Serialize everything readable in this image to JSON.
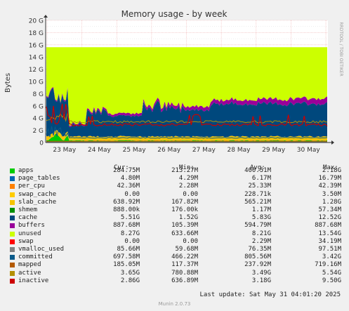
{
  "chart_data": {
    "type": "area",
    "title": "Memory usage - by week",
    "ylabel": "Bytes",
    "watermark": "RRDTOOL / TOBI OETIKER",
    "ylim": [
      0,
      20
    ],
    "y_unit": "G",
    "yticks": [
      "0",
      "2 G",
      "4 G",
      "6 G",
      "8 G",
      "10 G",
      "12 G",
      "14 G",
      "16 G",
      "18 G",
      "20 G"
    ],
    "x_tick_labels": [
      "23 May",
      "24 May",
      "25 May",
      "26 May",
      "27 May",
      "28 May",
      "29 May",
      "30 May"
    ],
    "grid": true,
    "total_ram_G": 15.6,
    "legend_columns": [
      "Cur:",
      "Min:",
      "Avg:",
      "Max:"
    ],
    "series": [
      {
        "name": "apps",
        "color": "#00cc00",
        "cur": "284.75M",
        "min": "213.27M",
        "avg": "400.51M",
        "max": "2.18G"
      },
      {
        "name": "page_tables",
        "color": "#0066b3",
        "cur": "4.80M",
        "min": "4.29M",
        "avg": "6.17M",
        "max": "16.79M"
      },
      {
        "name": "per_cpu",
        "color": "#ff8000",
        "cur": "42.36M",
        "min": "2.28M",
        "avg": "25.33M",
        "max": "42.39M"
      },
      {
        "name": "swap_cache",
        "color": "#ffcc00",
        "cur": "0.00",
        "min": "0.00",
        "avg": "228.71k",
        "max": "3.50M"
      },
      {
        "name": "slab_cache",
        "color": "#f5c400",
        "cur": "638.92M",
        "min": "167.82M",
        "avg": "565.21M",
        "max": "1.28G"
      },
      {
        "name": "shmem",
        "color": "#008f00",
        "cur": "888.00k",
        "min": "176.00k",
        "avg": "1.17M",
        "max": "57.34M"
      },
      {
        "name": "cache",
        "color": "#00487d",
        "cur": "5.51G",
        "min": "1.52G",
        "avg": "5.83G",
        "max": "12.52G"
      },
      {
        "name": "buffers",
        "color": "#990099",
        "cur": "887.68M",
        "min": "105.39M",
        "avg": "594.79M",
        "max": "887.68M"
      },
      {
        "name": "unused",
        "color": "#ccff00",
        "cur": "8.27G",
        "min": "633.66M",
        "avg": "8.21G",
        "max": "13.54G"
      },
      {
        "name": "swap",
        "color": "#ff0000",
        "cur": "0.00",
        "min": "0.00",
        "avg": "2.29M",
        "max": "34.19M"
      },
      {
        "name": "vmalloc_used",
        "color": "#808080",
        "cur": "85.66M",
        "min": "59.68M",
        "avg": "76.35M",
        "max": "97.51M"
      },
      {
        "name": "committed",
        "color": "#0a5a8a",
        "cur": "697.58M",
        "min": "466.22M",
        "avg": "805.56M",
        "max": "3.42G"
      },
      {
        "name": "mapped",
        "color": "#b35a00",
        "cur": "185.05M",
        "min": "117.37M",
        "avg": "237.92M",
        "max": "719.16M"
      },
      {
        "name": "active",
        "color": "#b38f00",
        "cur": "3.65G",
        "min": "780.88M",
        "avg": "3.49G",
        "max": "5.54G"
      },
      {
        "name": "inactive",
        "color": "#cc0000",
        "cur": "2.86G",
        "min": "636.89M",
        "avg": "3.18G",
        "max": "9.50G"
      }
    ]
  },
  "footer": {
    "last_update": "Last update: Sat May 31 04:01:20 2025",
    "version": "Munin 2.0.73"
  }
}
